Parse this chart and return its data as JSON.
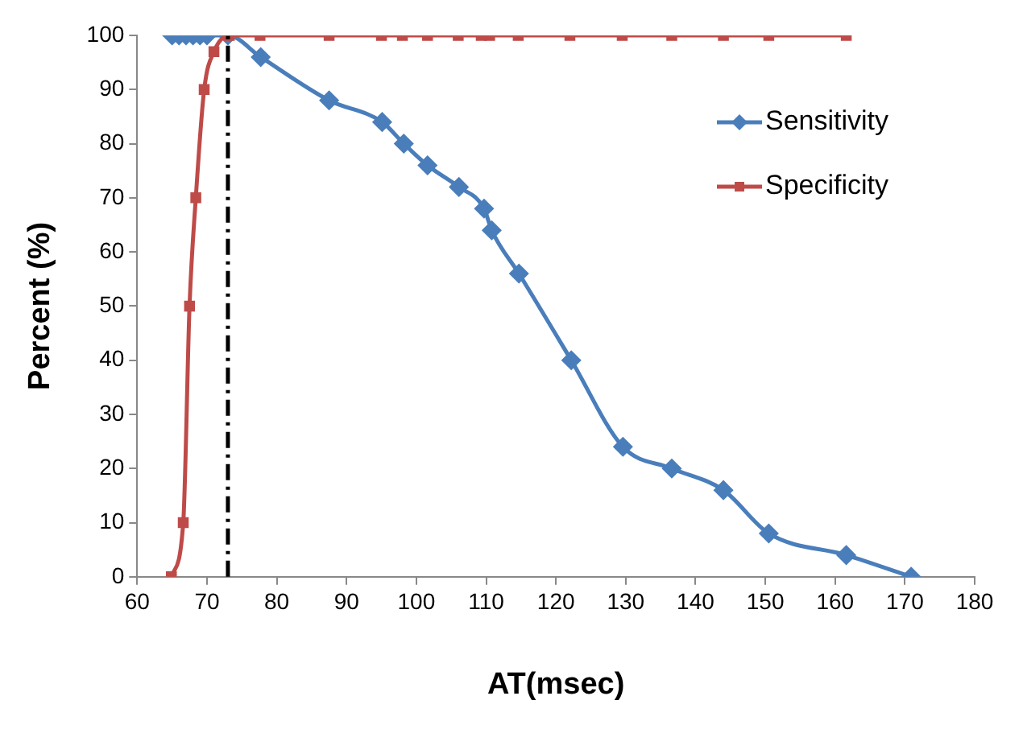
{
  "chart_data": {
    "type": "line",
    "xlabel": "AT(msec)",
    "ylabel": "Percent (%)",
    "xlim": [
      60,
      180
    ],
    "xticks": [
      60,
      70,
      80,
      90,
      100,
      110,
      120,
      130,
      140,
      150,
      160,
      170,
      180
    ],
    "ylim": [
      0,
      100
    ],
    "yticks": [
      0,
      10,
      20,
      30,
      40,
      50,
      60,
      70,
      80,
      90,
      100
    ],
    "grid": false,
    "legend": "top right",
    "line_style": "solid",
    "series": [
      {
        "name": "Sensitivity",
        "color": "#4a7ebb",
        "marker": "diamond",
        "x": [
          65,
          66,
          67,
          68,
          69,
          70,
          73,
          77.7,
          87.5,
          95.1,
          98.2,
          101.6,
          106.1,
          109.7,
          110.8,
          114.7,
          122.2,
          129.6,
          136.6,
          144,
          150.5,
          161.6,
          170.9
        ],
        "values": [
          100,
          100,
          100,
          100,
          100,
          100,
          100,
          96,
          88,
          84,
          80,
          76,
          72,
          68,
          64,
          56,
          40,
          24,
          20,
          16,
          8,
          4,
          0
        ]
      },
      {
        "name": "Specificity",
        "color": "#be4b48",
        "marker": "square",
        "x": [
          64.9,
          66.6,
          67.5,
          68.4,
          69.6,
          71,
          73.2,
          77.6,
          87.5,
          95,
          98,
          101.6,
          106,
          109.3,
          110.5,
          114.6,
          122,
          129.5,
          136.6,
          144,
          150.5,
          161.6
        ],
        "values": [
          0,
          10,
          50,
          70,
          90,
          97,
          100,
          100,
          100,
          100,
          100,
          100,
          100,
          100,
          100,
          100,
          100,
          100,
          100,
          100,
          100,
          100
        ]
      }
    ],
    "ref_lines": [
      {
        "axis": "x",
        "value": 73,
        "color": "#000000",
        "line_style": "dashed"
      }
    ]
  }
}
